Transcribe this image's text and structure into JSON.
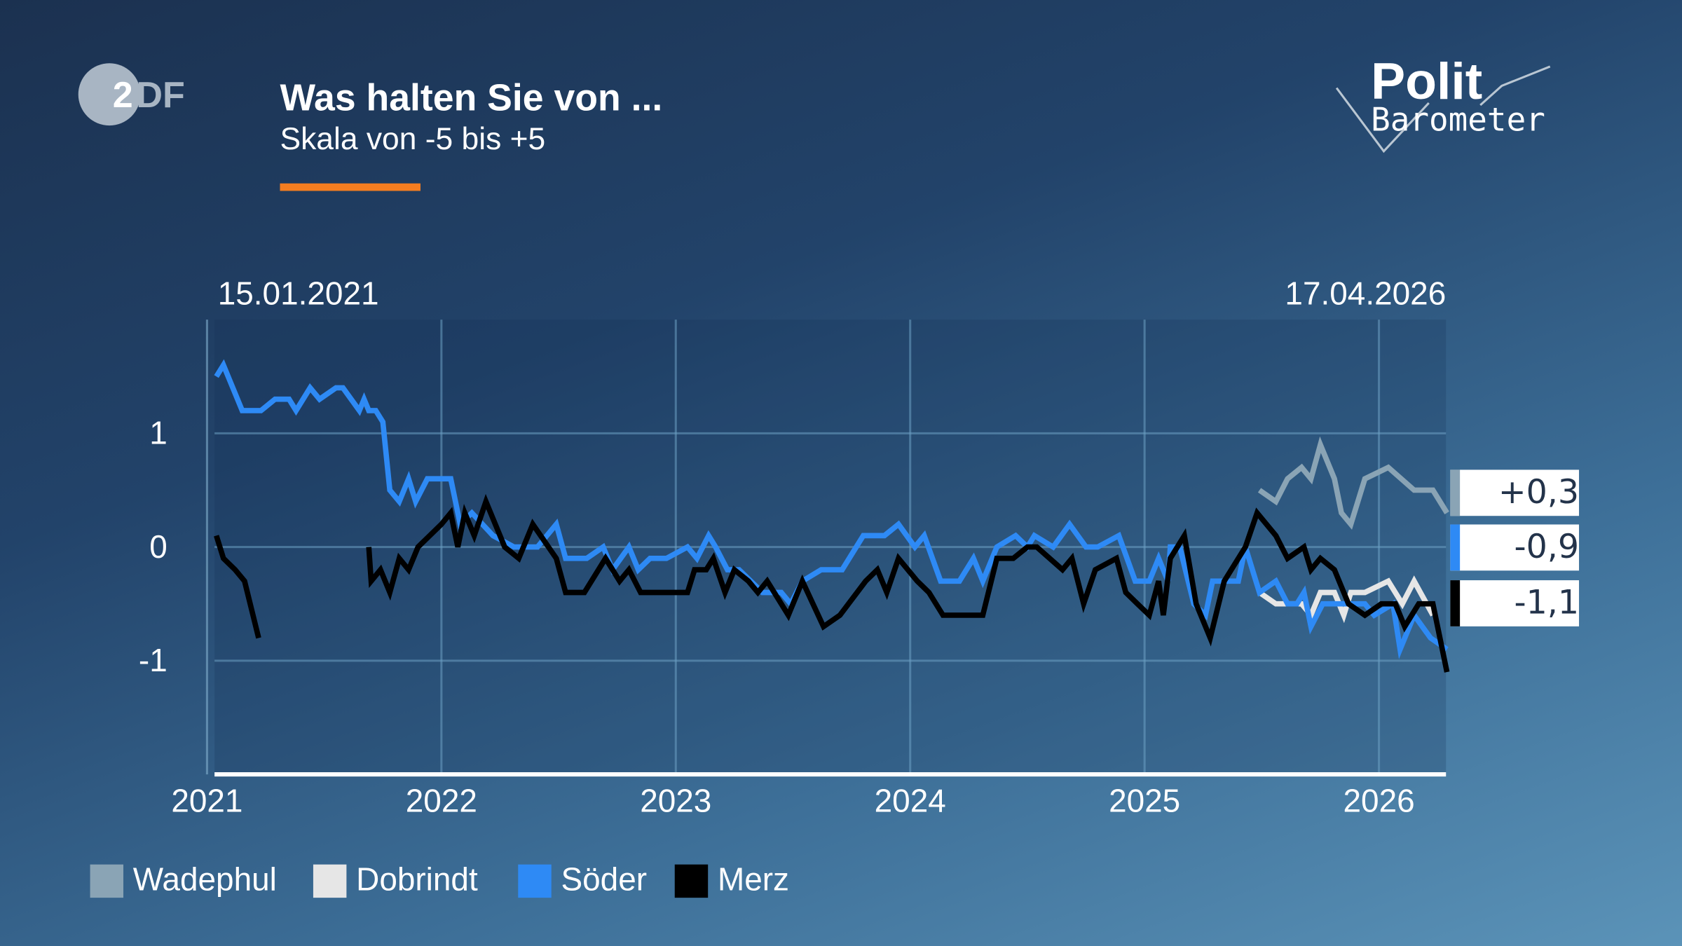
{
  "header": {
    "title": "Was halten Sie von ...",
    "subtitle": "Skala von -5 bis +5",
    "accent_color": "#f47d20",
    "logo_left": "ZDF",
    "logo_right": {
      "line1": "Polit",
      "line2": "Barometer"
    }
  },
  "chart_data": {
    "type": "line",
    "title": "Was halten Sie von ...",
    "subtitle": "Skala von -5 bis +5",
    "start_date": "15.01.2021",
    "end_date": "17.04.2026",
    "x_ticks": [
      "2021",
      "2022",
      "2023",
      "2024",
      "2025",
      "2026"
    ],
    "y_ticks": [
      {
        "value": 1,
        "label": "1"
      },
      {
        "value": 0,
        "label": "0"
      },
      {
        "value": -1,
        "label": "-1"
      }
    ],
    "xlim": [
      2021,
      2026.29
    ],
    "ylim": [
      -2,
      2
    ],
    "grid": true,
    "legend": "bottom-left",
    "series": [
      {
        "name": "Wadephul",
        "color": "#8aa4b5",
        "last_value": "+0,3",
        "segments": [
          [
            [
              2025.49,
              0.5
            ],
            [
              2025.56,
              0.4
            ],
            [
              2025.61,
              0.6
            ],
            [
              2025.67,
              0.7
            ],
            [
              2025.71,
              0.6
            ],
            [
              2025.75,
              0.9
            ],
            [
              2025.81,
              0.6
            ],
            [
              2025.84,
              0.3
            ],
            [
              2025.88,
              0.2
            ],
            [
              2025.94,
              0.6
            ],
            [
              2026.04,
              0.7
            ],
            [
              2026.15,
              0.5
            ],
            [
              2026.23,
              0.5
            ],
            [
              2026.29,
              0.3
            ]
          ]
        ]
      },
      {
        "name": "Dobrindt",
        "color": "#e6e6e6",
        "last_value": "",
        "segments": [
          [
            [
              2025.49,
              -0.4
            ],
            [
              2025.56,
              -0.5
            ],
            [
              2025.67,
              -0.5
            ],
            [
              2025.71,
              -0.6
            ],
            [
              2025.75,
              -0.4
            ],
            [
              2025.81,
              -0.4
            ],
            [
              2025.85,
              -0.6
            ],
            [
              2025.88,
              -0.4
            ],
            [
              2025.94,
              -0.4
            ],
            [
              2026.04,
              -0.3
            ],
            [
              2026.1,
              -0.5
            ],
            [
              2026.15,
              -0.3
            ],
            [
              2026.23,
              -0.6
            ]
          ]
        ]
      },
      {
        "name": "Söder",
        "color": "#2e8af5",
        "last_value": "-0,9",
        "segments": [
          [
            [
              2021.04,
              1.5
            ],
            [
              2021.07,
              1.6
            ],
            [
              2021.15,
              1.2
            ],
            [
              2021.23,
              1.2
            ],
            [
              2021.29,
              1.3
            ],
            [
              2021.35,
              1.3
            ],
            [
              2021.38,
              1.2
            ],
            [
              2021.44,
              1.4
            ],
            [
              2021.48,
              1.3
            ],
            [
              2021.55,
              1.4
            ],
            [
              2021.58,
              1.4
            ],
            [
              2021.65,
              1.2
            ],
            [
              2021.67,
              1.3
            ],
            [
              2021.69,
              1.2
            ],
            [
              2021.72,
              1.2
            ],
            [
              2021.75,
              1.1
            ],
            [
              2021.78,
              0.5
            ],
            [
              2021.82,
              0.4
            ],
            [
              2021.86,
              0.6
            ],
            [
              2021.89,
              0.4
            ],
            [
              2021.94,
              0.6
            ],
            [
              2022.04,
              0.6
            ],
            [
              2022.08,
              0.2
            ],
            [
              2022.13,
              0.3
            ],
            [
              2022.22,
              0.1
            ],
            [
              2022.31,
              0.0
            ],
            [
              2022.41,
              0.0
            ],
            [
              2022.45,
              0.1
            ],
            [
              2022.49,
              0.2
            ],
            [
              2022.53,
              -0.1
            ],
            [
              2022.62,
              -0.1
            ],
            [
              2022.69,
              0.0
            ],
            [
              2022.73,
              -0.2
            ],
            [
              2022.8,
              0.0
            ],
            [
              2022.84,
              -0.2
            ],
            [
              2022.89,
              -0.1
            ],
            [
              2022.96,
              -0.1
            ],
            [
              2023.05,
              0.0
            ],
            [
              2023.09,
              -0.1
            ],
            [
              2023.14,
              0.1
            ],
            [
              2023.17,
              0.0
            ],
            [
              2023.22,
              -0.2
            ],
            [
              2023.27,
              -0.2
            ],
            [
              2023.32,
              -0.3
            ],
            [
              2023.37,
              -0.4
            ],
            [
              2023.45,
              -0.4
            ],
            [
              2023.49,
              -0.5
            ],
            [
              2023.54,
              -0.3
            ],
            [
              2023.62,
              -0.2
            ],
            [
              2023.71,
              -0.2
            ],
            [
              2023.8,
              0.1
            ],
            [
              2023.89,
              0.1
            ],
            [
              2023.95,
              0.2
            ],
            [
              2024.02,
              0.0
            ],
            [
              2024.06,
              0.1
            ],
            [
              2024.13,
              -0.3
            ],
            [
              2024.21,
              -0.3
            ],
            [
              2024.27,
              -0.1
            ],
            [
              2024.31,
              -0.3
            ],
            [
              2024.37,
              0.0
            ],
            [
              2024.45,
              0.1
            ],
            [
              2024.5,
              0.0
            ],
            [
              2024.53,
              0.1
            ],
            [
              2024.61,
              0.0
            ],
            [
              2024.68,
              0.2
            ],
            [
              2024.75,
              0.0
            ],
            [
              2024.8,
              0.0
            ],
            [
              2024.89,
              0.1
            ],
            [
              2024.96,
              -0.3
            ],
            [
              2025.02,
              -0.3
            ],
            [
              2025.06,
              -0.1
            ],
            [
              2025.1,
              -0.3
            ],
            [
              2025.11,
              0.0
            ],
            [
              2025.15,
              0.0
            ],
            [
              2025.21,
              -0.5
            ],
            [
              2025.26,
              -0.6
            ],
            [
              2025.29,
              -0.3
            ],
            [
              2025.4,
              -0.3
            ],
            [
              2025.43,
              0.0
            ],
            [
              2025.49,
              -0.4
            ],
            [
              2025.56,
              -0.3
            ],
            [
              2025.61,
              -0.5
            ],
            [
              2025.65,
              -0.5
            ],
            [
              2025.68,
              -0.4
            ],
            [
              2025.71,
              -0.7
            ],
            [
              2025.76,
              -0.5
            ],
            [
              2025.81,
              -0.5
            ],
            [
              2025.94,
              -0.5
            ],
            [
              2025.98,
              -0.6
            ],
            [
              2026.06,
              -0.5
            ],
            [
              2026.09,
              -0.9
            ],
            [
              2026.15,
              -0.6
            ],
            [
              2026.22,
              -0.8
            ],
            [
              2026.29,
              -0.9
            ]
          ]
        ]
      },
      {
        "name": "Merz",
        "color": "#000000",
        "last_value": "-1,1",
        "segments": [
          [
            [
              2021.04,
              0.1
            ],
            [
              2021.07,
              -0.1
            ],
            [
              2021.12,
              -0.2
            ],
            [
              2021.16,
              -0.3
            ],
            [
              2021.22,
              -0.8
            ]
          ],
          [
            [
              2021.69,
              0.0
            ],
            [
              2021.7,
              -0.3
            ],
            [
              2021.74,
              -0.2
            ],
            [
              2021.78,
              -0.4
            ],
            [
              2021.82,
              -0.1
            ],
            [
              2021.86,
              -0.2
            ],
            [
              2021.9,
              0.0
            ],
            [
              2022.0,
              0.2
            ],
            [
              2022.04,
              0.3
            ],
            [
              2022.07,
              0.0
            ],
            [
              2022.1,
              0.3
            ],
            [
              2022.14,
              0.1
            ],
            [
              2022.19,
              0.4
            ],
            [
              2022.27,
              0.0
            ],
            [
              2022.33,
              -0.1
            ],
            [
              2022.39,
              0.2
            ],
            [
              2022.49,
              -0.1
            ],
            [
              2022.53,
              -0.4
            ],
            [
              2022.61,
              -0.4
            ],
            [
              2022.7,
              -0.1
            ],
            [
              2022.76,
              -0.3
            ],
            [
              2022.8,
              -0.2
            ],
            [
              2022.85,
              -0.4
            ],
            [
              2023.05,
              -0.4
            ],
            [
              2023.08,
              -0.2
            ],
            [
              2023.13,
              -0.2
            ],
            [
              2023.16,
              -0.1
            ],
            [
              2023.21,
              -0.4
            ],
            [
              2023.25,
              -0.2
            ],
            [
              2023.31,
              -0.3
            ],
            [
              2023.35,
              -0.4
            ],
            [
              2023.39,
              -0.3
            ],
            [
              2023.48,
              -0.6
            ],
            [
              2023.54,
              -0.3
            ],
            [
              2023.63,
              -0.7
            ],
            [
              2023.7,
              -0.6
            ],
            [
              2023.81,
              -0.3
            ],
            [
              2023.86,
              -0.2
            ],
            [
              2023.9,
              -0.4
            ],
            [
              2023.95,
              -0.1
            ],
            [
              2024.03,
              -0.3
            ],
            [
              2024.08,
              -0.4
            ],
            [
              2024.14,
              -0.6
            ],
            [
              2024.31,
              -0.6
            ],
            [
              2024.37,
              -0.1
            ],
            [
              2024.44,
              -0.1
            ],
            [
              2024.5,
              0.0
            ],
            [
              2024.54,
              0.0
            ],
            [
              2024.65,
              -0.2
            ],
            [
              2024.69,
              -0.1
            ],
            [
              2024.74,
              -0.5
            ],
            [
              2024.79,
              -0.2
            ],
            [
              2024.88,
              -0.1
            ],
            [
              2024.92,
              -0.4
            ],
            [
              2024.97,
              -0.5
            ],
            [
              2025.02,
              -0.6
            ],
            [
              2025.06,
              -0.3
            ],
            [
              2025.08,
              -0.6
            ],
            [
              2025.11,
              -0.1
            ],
            [
              2025.17,
              0.1
            ],
            [
              2025.22,
              -0.5
            ],
            [
              2025.28,
              -0.8
            ],
            [
              2025.34,
              -0.3
            ],
            [
              2025.43,
              0.0
            ],
            [
              2025.48,
              0.3
            ],
            [
              2025.56,
              0.1
            ],
            [
              2025.61,
              -0.1
            ],
            [
              2025.68,
              0.0
            ],
            [
              2025.71,
              -0.2
            ],
            [
              2025.75,
              -0.1
            ],
            [
              2025.81,
              -0.2
            ],
            [
              2025.87,
              -0.5
            ],
            [
              2025.94,
              -0.6
            ],
            [
              2026.01,
              -0.5
            ],
            [
              2026.07,
              -0.5
            ],
            [
              2026.11,
              -0.7
            ],
            [
              2026.17,
              -0.5
            ],
            [
              2026.23,
              -0.5
            ],
            [
              2026.29,
              -1.1
            ]
          ]
        ]
      }
    ]
  },
  "value_boxes": [
    {
      "label": "+0,3",
      "color": "#8aa4b5"
    },
    {
      "label": "-0,9",
      "color": "#2e8af5"
    },
    {
      "label": "-1,1",
      "color": "#000000"
    }
  ],
  "legend": [
    {
      "label": "Wadephul",
      "color": "#8aa4b5"
    },
    {
      "label": "Dobrindt",
      "color": "#e6e6e6"
    },
    {
      "label": "Söder",
      "color": "#2e8af5"
    },
    {
      "label": "Merz",
      "color": "#000000"
    }
  ]
}
